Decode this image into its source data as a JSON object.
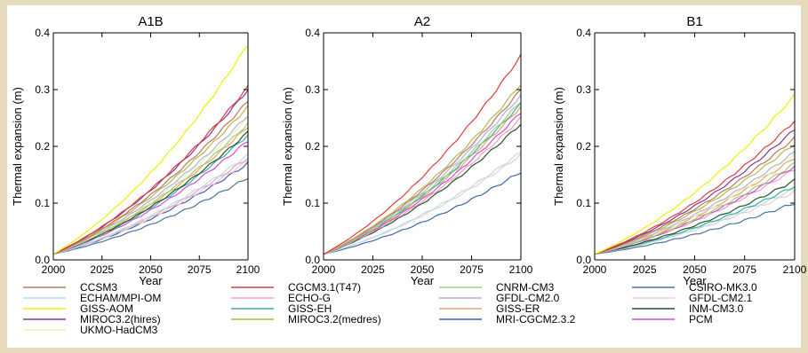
{
  "chart_data": [
    {
      "type": "line",
      "title": "A1B",
      "xlabel": "Year",
      "ylabel": "Thermal expansion (m)",
      "xlim": [
        2000,
        2100
      ],
      "ylim": [
        0,
        0.4
      ],
      "xticks": [
        "2000",
        "2025",
        "2050",
        "2075",
        "2100"
      ],
      "yticks": [
        "0.0",
        "0.1",
        "0.2",
        "0.3",
        "0.4"
      ],
      "series": [
        {
          "name": "GISS-AOM",
          "x": [
            2000,
            2100
          ],
          "y": [
            0.01,
            0.38
          ]
        },
        {
          "name": "CGCM3.1(T47)",
          "x": [
            2000,
            2100
          ],
          "y": [
            0.01,
            0.305
          ]
        },
        {
          "name": "MIROC3.2(hires)",
          "x": [
            2000,
            2100
          ],
          "y": [
            0.01,
            0.3
          ]
        },
        {
          "name": "CCSM3",
          "x": [
            2000,
            2100
          ],
          "y": [
            0.01,
            0.28
          ]
        },
        {
          "name": "MIROC3.2(medres)",
          "x": [
            2000,
            2100
          ],
          "y": [
            0.01,
            0.27
          ]
        },
        {
          "name": "GFDL-CM2.0",
          "x": [
            2000,
            2100
          ],
          "y": [
            0.01,
            0.255
          ]
        },
        {
          "name": "UKMO-HadCM3",
          "x": [
            2000,
            2100
          ],
          "y": [
            0.01,
            0.25
          ]
        },
        {
          "name": "CNRM-CM3",
          "x": [
            2000,
            2100
          ],
          "y": [
            0.01,
            0.24
          ]
        },
        {
          "name": "GISS-ER",
          "x": [
            2000,
            2100
          ],
          "y": [
            0.01,
            0.235
          ]
        },
        {
          "name": "INM-CM3.0",
          "x": [
            2000,
            2100
          ],
          "y": [
            0.01,
            0.225
          ]
        },
        {
          "name": "GISS-EH",
          "x": [
            2000,
            2100
          ],
          "y": [
            0.01,
            0.22
          ]
        },
        {
          "name": "PCM",
          "x": [
            2000,
            2100
          ],
          "y": [
            0.01,
            0.21
          ]
        },
        {
          "name": "ECHAM/MPI-OM",
          "x": [
            2000,
            2100
          ],
          "y": [
            0.01,
            0.185
          ]
        },
        {
          "name": "ECHO-G",
          "x": [
            2000,
            2100
          ],
          "y": [
            0.01,
            0.18
          ]
        },
        {
          "name": "GFDL-CM2.1",
          "x": [
            2000,
            2100
          ],
          "y": [
            0.01,
            0.175
          ]
        },
        {
          "name": "MRI-CGCM2.3.2",
          "x": [
            2000,
            2100
          ],
          "y": [
            0.01,
            0.17
          ]
        },
        {
          "name": "CSIRO-MK3.0",
          "x": [
            2000,
            2100
          ],
          "y": [
            0.01,
            0.145
          ]
        }
      ]
    },
    {
      "type": "line",
      "title": "A2",
      "xlabel": "Year",
      "ylabel": "Thermal expansion (m)",
      "xlim": [
        2000,
        2100
      ],
      "ylim": [
        0,
        0.4
      ],
      "xticks": [
        "2000",
        "2025",
        "2050",
        "2075",
        "2100"
      ],
      "yticks": [
        "0.0",
        "0.1",
        "0.2",
        "0.3",
        "0.4"
      ],
      "series": [
        {
          "name": "CGCM3.1(T47)",
          "x": [
            2000,
            2100
          ],
          "y": [
            0.01,
            0.36
          ]
        },
        {
          "name": "MIROC3.2(medres)",
          "x": [
            2000,
            2100
          ],
          "y": [
            0.01,
            0.31
          ]
        },
        {
          "name": "CCSM3",
          "x": [
            2000,
            2100
          ],
          "y": [
            0.01,
            0.3
          ]
        },
        {
          "name": "GFDL-CM2.0",
          "x": [
            2000,
            2100
          ],
          "y": [
            0.01,
            0.29
          ]
        },
        {
          "name": "CNRM-CM3",
          "x": [
            2000,
            2100
          ],
          "y": [
            0.01,
            0.28
          ]
        },
        {
          "name": "GISS-EH",
          "x": [
            2000,
            2100
          ],
          "y": [
            0.01,
            0.275
          ]
        },
        {
          "name": "GISS-ER",
          "x": [
            2000,
            2100
          ],
          "y": [
            0.01,
            0.27
          ]
        },
        {
          "name": "PCM",
          "x": [
            2000,
            2100
          ],
          "y": [
            0.01,
            0.26
          ]
        },
        {
          "name": "ECHO-G",
          "x": [
            2000,
            2100
          ],
          "y": [
            0.01,
            0.25
          ]
        },
        {
          "name": "INM-CM3.0",
          "x": [
            2000,
            2100
          ],
          "y": [
            0.01,
            0.24
          ]
        },
        {
          "name": "ECHAM/MPI-OM",
          "x": [
            2000,
            2100
          ],
          "y": [
            0.01,
            0.19
          ]
        },
        {
          "name": "GFDL-CM2.1",
          "x": [
            2000,
            2100
          ],
          "y": [
            0.01,
            0.185
          ]
        },
        {
          "name": "MRI-CGCM2.3.2",
          "x": [
            2000,
            2100
          ],
          "y": [
            0.01,
            0.155
          ]
        }
      ]
    },
    {
      "type": "line",
      "title": "B1",
      "xlabel": "Year",
      "ylabel": "Thermal expansion (m)",
      "xlim": [
        2000,
        2100
      ],
      "ylim": [
        0,
        0.4
      ],
      "xticks": [
        "2000",
        "2025",
        "2050",
        "2075",
        "2100"
      ],
      "yticks": [
        "0.0",
        "0.1",
        "0.2",
        "0.3",
        "0.4"
      ],
      "series": [
        {
          "name": "GISS-AOM",
          "x": [
            2000,
            2100
          ],
          "y": [
            0.01,
            0.29
          ]
        },
        {
          "name": "CGCM3.1(T47)",
          "x": [
            2000,
            2100
          ],
          "y": [
            0.01,
            0.245
          ]
        },
        {
          "name": "MIROC3.2(hires)",
          "x": [
            2000,
            2100
          ],
          "y": [
            0.01,
            0.23
          ]
        },
        {
          "name": "CCSM3",
          "x": [
            2000,
            2100
          ],
          "y": [
            0.01,
            0.215
          ]
        },
        {
          "name": "MIROC3.2(medres)",
          "x": [
            2000,
            2100
          ],
          "y": [
            0.01,
            0.205
          ]
        },
        {
          "name": "GFDL-CM2.0",
          "x": [
            2000,
            2100
          ],
          "y": [
            0.01,
            0.19
          ]
        },
        {
          "name": "UKMO-HadCM3",
          "x": [
            2000,
            2100
          ],
          "y": [
            0.01,
            0.185
          ]
        },
        {
          "name": "GISS-ER",
          "x": [
            2000,
            2100
          ],
          "y": [
            0.01,
            0.18
          ]
        },
        {
          "name": "CNRM-CM3",
          "x": [
            2000,
            2100
          ],
          "y": [
            0.01,
            0.17
          ]
        },
        {
          "name": "PCM",
          "x": [
            2000,
            2100
          ],
          "y": [
            0.01,
            0.165
          ]
        },
        {
          "name": "ECHO-G",
          "x": [
            2000,
            2100
          ],
          "y": [
            0.01,
            0.16
          ]
        },
        {
          "name": "INM-CM3.0",
          "x": [
            2000,
            2100
          ],
          "y": [
            0.01,
            0.14
          ]
        },
        {
          "name": "GISS-EH",
          "x": [
            2000,
            2100
          ],
          "y": [
            0.01,
            0.13
          ]
        },
        {
          "name": "ECHAM/MPI-OM",
          "x": [
            2000,
            2100
          ],
          "y": [
            0.01,
            0.125
          ]
        },
        {
          "name": "GFDL-CM2.1",
          "x": [
            2000,
            2100
          ],
          "y": [
            0.01,
            0.12
          ]
        },
        {
          "name": "CSIRO-MK3.0",
          "x": [
            2000,
            2100
          ],
          "y": [
            0.01,
            0.1
          ]
        }
      ]
    }
  ],
  "legend": {
    "entries": [
      {
        "name": "CCSM3",
        "color": "#b87a58"
      },
      {
        "name": "ECHAM/MPI-OM",
        "color": "#b6e0e0"
      },
      {
        "name": "GISS-AOM",
        "color": "#f0f000"
      },
      {
        "name": "MIROC3.2(hires)",
        "color": "#7e3a94"
      },
      {
        "name": "UKMO-HadCM3",
        "color": "#f2f2b0"
      },
      {
        "name": "CGCM3.1(T47)",
        "color": "#e03a3a"
      },
      {
        "name": "ECHO-G",
        "color": "#f0a0bc"
      },
      {
        "name": "GISS-EH",
        "color": "#3ab0ac"
      },
      {
        "name": "MIROC3.2(medres)",
        "color": "#b8b450"
      },
      {
        "name": "CNRM-CM3",
        "color": "#9cd27a"
      },
      {
        "name": "GFDL-CM2.0",
        "color": "#b0b0e4"
      },
      {
        "name": "GISS-ER",
        "color": "#f0a060"
      },
      {
        "name": "MRI-CGCM2.3.2",
        "color": "#3e64b0"
      },
      {
        "name": "CSIRO-MK3.0",
        "color": "#4a74a0"
      },
      {
        "name": "GFDL-CM2.1",
        "color": "#f0c8d4"
      },
      {
        "name": "INM-CM3.0",
        "color": "#24542a"
      },
      {
        "name": "PCM",
        "color": "#d050d0"
      }
    ]
  }
}
